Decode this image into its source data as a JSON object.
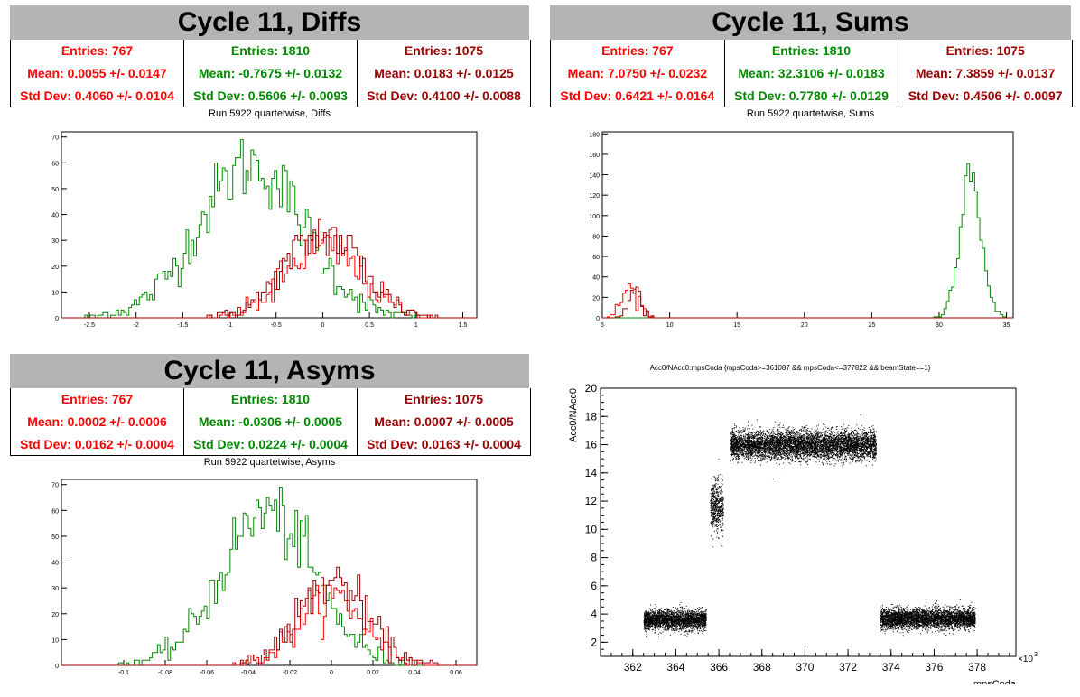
{
  "colors": {
    "red": "#ff0000",
    "green": "#008800",
    "dark": "#990000",
    "black": "#000000"
  },
  "panels": [
    {
      "title": "Cycle 11, Diffs",
      "subtitle": "Run 5922 quartetwise, Diffs",
      "stats": [
        {
          "entries": "Entries: 767",
          "mean": "Mean: 0.0055 +/- 0.0147",
          "std": "Std Dev: 0.4060 +/- 0.0104",
          "color": "#ff0000"
        },
        {
          "entries": "Entries: 1810",
          "mean": "Mean: -0.7675 +/- 0.0132",
          "std": "Std Dev: 0.5606 +/- 0.0093",
          "color": "#008800"
        },
        {
          "entries": "Entries: 1075",
          "mean": "Mean: 0.0183 +/- 0.0125",
          "std": "Std Dev: 0.4100 +/- 0.0088",
          "color": "#990000"
        }
      ]
    },
    {
      "title": "Cycle 11, Sums",
      "subtitle": "Run 5922 quartetwise, Sums",
      "stats": [
        {
          "entries": "Entries: 767",
          "mean": "Mean: 7.0750 +/- 0.0232",
          "std": "Std Dev: 0.6421 +/- 0.0164",
          "color": "#ff0000"
        },
        {
          "entries": "Entries: 1810",
          "mean": "Mean: 32.3106 +/- 0.0183",
          "std": "Std Dev: 0.7780 +/- 0.0129",
          "color": "#008800"
        },
        {
          "entries": "Entries: 1075",
          "mean": "Mean: 7.3859 +/- 0.0137",
          "std": "Std Dev: 0.4506 +/- 0.0097",
          "color": "#990000"
        }
      ]
    },
    {
      "title": "Cycle 11, Asyms",
      "subtitle": "Run 5922 quartetwise, Asyms",
      "stats": [
        {
          "entries": "Entries: 767",
          "mean": "Mean: 0.0002 +/- 0.0006",
          "std": "Std Dev: 0.0162 +/- 0.0004",
          "color": "#ff0000"
        },
        {
          "entries": "Entries: 1810",
          "mean": "Mean: -0.0306 +/- 0.0005",
          "std": "Std Dev: 0.0224 +/- 0.0004",
          "color": "#008800"
        },
        {
          "entries": "Entries: 1075",
          "mean": "Mean: 0.0007 +/- 0.0005",
          "std": "Std Dev: 0.0163 +/- 0.0004",
          "color": "#990000"
        }
      ]
    }
  ],
  "chart_data": [
    {
      "type": "histogram",
      "title": "Run 5922 quartetwise, Diffs",
      "xlim": [
        -2.8,
        1.65
      ],
      "ylim": [
        0,
        72
      ],
      "xticks": [
        -2.5,
        -2,
        -1.5,
        -1,
        -0.5,
        0,
        0.5,
        1,
        1.5
      ],
      "yticks": [
        0,
        10,
        20,
        30,
        40,
        50,
        60,
        70
      ],
      "series": [
        {
          "color": "#008800",
          "mean": -0.7675,
          "std": 0.5606,
          "peak": 69
        },
        {
          "color": "#ff0000",
          "mean": 0.0055,
          "std": 0.406,
          "peak": 32
        },
        {
          "color": "#990000",
          "mean": 0.0183,
          "std": 0.41,
          "peak": 38
        }
      ]
    },
    {
      "type": "histogram",
      "title": "Run 5922 quartetwise, Sums",
      "xlim": [
        5,
        35.5
      ],
      "ylim": [
        0,
        182
      ],
      "xticks": [
        5,
        10,
        15,
        20,
        25,
        30,
        35
      ],
      "yticks": [
        0,
        20,
        40,
        60,
        80,
        100,
        120,
        140,
        160,
        180
      ],
      "series": [
        {
          "color": "#008800",
          "mean": 32.3106,
          "std": 0.778,
          "peak": 172
        },
        {
          "color": "#ff0000",
          "mean": 7.075,
          "std": 0.6421,
          "peak": 34
        },
        {
          "color": "#990000",
          "mean": 7.3859,
          "std": 0.4506,
          "peak": 36
        }
      ]
    },
    {
      "type": "histogram",
      "title": "Run 5922 quartetwise, Asyms",
      "xlim": [
        -0.13,
        0.07
      ],
      "ylim": [
        0,
        72
      ],
      "xticks": [
        -0.1,
        -0.08,
        -0.06,
        -0.04,
        -0.02,
        0,
        0.02,
        0.04,
        0.06
      ],
      "yticks": [
        0,
        10,
        20,
        30,
        40,
        50,
        60,
        70
      ],
      "series": [
        {
          "color": "#008800",
          "mean": -0.0306,
          "std": 0.0224,
          "peak": 69
        },
        {
          "color": "#ff0000",
          "mean": 0.0002,
          "std": 0.0162,
          "peak": 31
        },
        {
          "color": "#990000",
          "mean": 0.0007,
          "std": 0.0163,
          "peak": 38
        }
      ]
    },
    {
      "type": "scatter",
      "title": "Acc0/NAcc0:mpsCoda {mpsCoda>=361087 && mpsCoda<=377822 && beamState==1}",
      "xlabel": "mpsCoda",
      "ylabel": "Acc0/NAcc0",
      "xlim": [
        360.5,
        379.8
      ],
      "ylim": [
        1,
        20
      ],
      "xticks": [
        362,
        364,
        366,
        368,
        370,
        372,
        374,
        376,
        378
      ],
      "yticks": [
        2,
        4,
        6,
        8,
        10,
        12,
        14,
        16,
        18,
        20
      ],
      "x_multiplier": "×10",
      "x_multiplier_exp": "3",
      "clusters": [
        {
          "xmin": 362.5,
          "xmax": 365.4,
          "ymean": 3.6,
          "ystd": 0.35
        },
        {
          "xmin": 365.6,
          "xmax": 366.2,
          "ymean": 11.6,
          "ystd": 0.9
        },
        {
          "xmin": 366.5,
          "xmax": 373.3,
          "ymean": 16.0,
          "ystd": 0.5
        },
        {
          "xmin": 373.5,
          "xmax": 377.9,
          "ymean": 3.7,
          "ystd": 0.35
        }
      ]
    }
  ]
}
